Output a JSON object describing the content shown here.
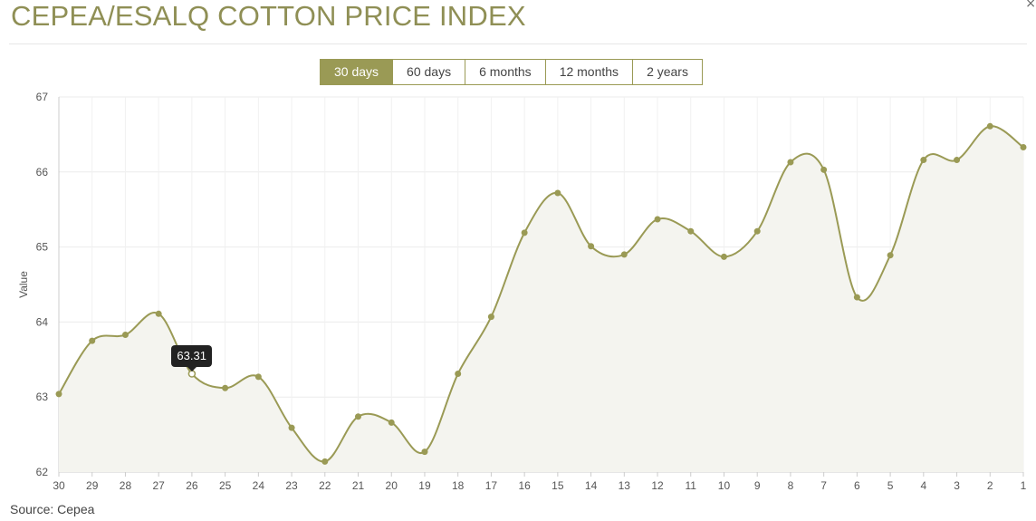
{
  "header": {
    "title": "CEPEA/ESALQ COTTON PRICE INDEX",
    "close_glyph": "×"
  },
  "range_tabs": [
    {
      "label": "30 days",
      "active": true
    },
    {
      "label": "60 days",
      "active": false
    },
    {
      "label": "6 months",
      "active": false
    },
    {
      "label": "12 months",
      "active": false
    },
    {
      "label": "2 years",
      "active": false
    }
  ],
  "tooltip": {
    "value": "63.31"
  },
  "footer": {
    "source": "Source: Cepea"
  },
  "colors": {
    "accent": "#9a9a55",
    "line": "#9a9a55",
    "fill": "#f4f4ef",
    "grid": "#ebebeb",
    "title": "#8f8f55"
  },
  "chart_data": {
    "type": "line",
    "categories": [
      "30",
      "29",
      "28",
      "27",
      "26",
      "25",
      "24",
      "23",
      "22",
      "21",
      "20",
      "19",
      "18",
      "17",
      "16",
      "15",
      "14",
      "13",
      "12",
      "11",
      "10",
      "9",
      "8",
      "7",
      "6",
      "5",
      "4",
      "3",
      "2",
      "1"
    ],
    "values": [
      63.04,
      63.75,
      63.83,
      64.11,
      63.31,
      63.12,
      63.27,
      62.59,
      62.14,
      62.74,
      62.66,
      62.27,
      63.31,
      64.07,
      65.19,
      65.72,
      65.01,
      64.9,
      65.37,
      65.21,
      64.87,
      65.21,
      66.13,
      66.03,
      64.33,
      64.89,
      66.16,
      66.16,
      66.61,
      66.33
    ],
    "ylabel": "Value",
    "ylim": [
      62,
      67
    ],
    "yticks": [
      62,
      63,
      64,
      65,
      66,
      67
    ],
    "highlight_index": 4,
    "grid": true,
    "legend": "none"
  }
}
